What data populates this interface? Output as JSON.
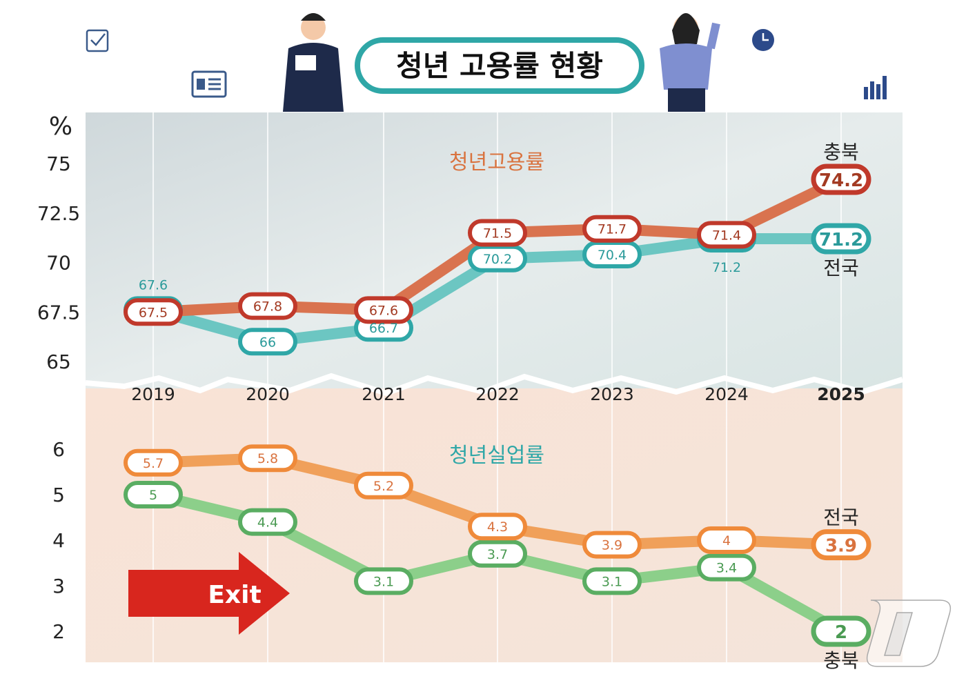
{
  "title": "청년 고용률 현황",
  "unit": "%",
  "watermark": "뉴스1",
  "colors": {
    "chungbuk_emp": "#c0392b",
    "national_emp": "#2fa7a7",
    "national_unemp": "#ef8a3a",
    "chungbuk_unemp": "#5aad62",
    "title_border": "#2fa7a7"
  },
  "chart_data": [
    {
      "type": "line",
      "title": "청년고용률",
      "categories": [
        "2019",
        "2020",
        "2021",
        "2022",
        "2023",
        "2024",
        "2025"
      ],
      "ylim": [
        65,
        75
      ],
      "yticks": [
        "65",
        "67.5",
        "70",
        "72.5",
        "75"
      ],
      "series": [
        {
          "name": "충북",
          "values": [
            67.5,
            67.8,
            67.6,
            71.5,
            71.7,
            71.4,
            74.2
          ]
        },
        {
          "name": "전국",
          "values": [
            67.6,
            66,
            66.7,
            70.2,
            70.4,
            71.2,
            71.2
          ]
        }
      ]
    },
    {
      "type": "line",
      "title": "청년실업률",
      "categories": [
        "2019",
        "2020",
        "2021",
        "2022",
        "2023",
        "2024",
        "2025"
      ],
      "ylim": [
        2,
        6
      ],
      "yticks": [
        "2",
        "3",
        "4",
        "5",
        "6"
      ],
      "series": [
        {
          "name": "전국",
          "values": [
            5.7,
            5.8,
            5.2,
            4.3,
            3.9,
            4,
            3.9
          ]
        },
        {
          "name": "충북",
          "values": [
            5,
            4.4,
            3.1,
            3.7,
            3.1,
            3.4,
            2
          ]
        }
      ]
    }
  ],
  "decor": {
    "exit_label": "Exit"
  }
}
